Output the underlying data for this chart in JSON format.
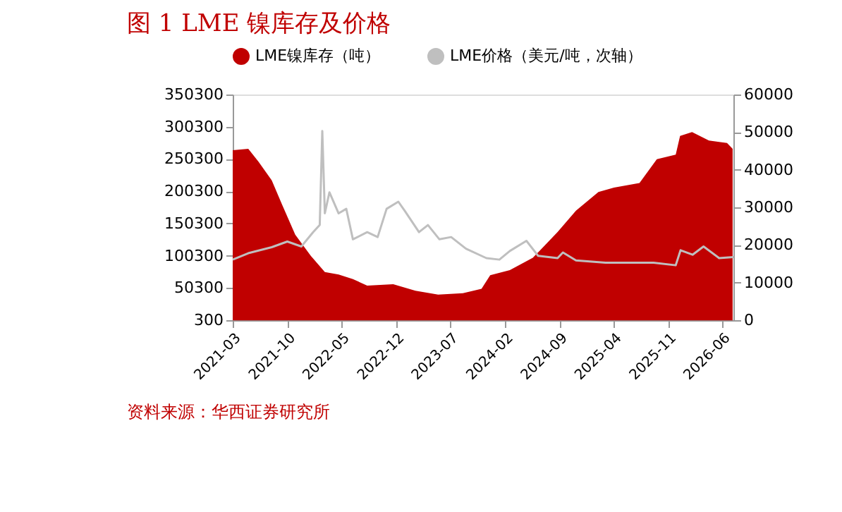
{
  "chart_data": {
    "type": "area",
    "title": "图 1 LME 镍库存及价格",
    "annotations": [
      "资料来源：华西证券研究所"
    ],
    "xlim": [
      "2021-03",
      "2026-07-15"
    ],
    "xticks": [
      "2021-03",
      "2021-10",
      "2022-05",
      "2022-12",
      "2023-07",
      "2024-02",
      "2024-09",
      "2025-04",
      "2025-11",
      "2026-06"
    ],
    "ylim": [
      300,
      350300
    ],
    "yticks": [
      300,
      50300,
      100300,
      150300,
      200300,
      250300,
      300300,
      350300
    ],
    "y2lim": [
      0,
      60000
    ],
    "y2ticks": [
      0,
      10000,
      20000,
      30000,
      40000,
      50000,
      60000
    ],
    "legend": "top",
    "grid": false,
    "series": [
      {
        "name": "LME镍库存（吨）",
        "color": "#c00000",
        "x": [
          "2021-03",
          "2021-05",
          "2021-06-10",
          "2021-08",
          "2021-09-10",
          "2021-11",
          "2022-01",
          "2022-02-25",
          "2022-04-20",
          "2022-06-15",
          "2022-08-10",
          "2022-11-20",
          "2023-02-15",
          "2023-05-15",
          "2023-08-20",
          "2023-11",
          "2023-12-05",
          "2024-02-20",
          "2024-05-20",
          "2024-08-25",
          "2024-11-05",
          "2025-02",
          "2025-04-03",
          "2025-07-12",
          "2025-09-18",
          "2025-12",
          "2025-12-18",
          "2026-02-03",
          "2026-04-10",
          "2026-06-20",
          "2026-07-12"
        ],
        "values": [
          264000,
          266000,
          246000,
          217000,
          180000,
          133000,
          100000,
          75000,
          71000,
          64000,
          54000,
          56000,
          46000,
          40000,
          42000,
          49000,
          70000,
          78000,
          97000,
          137000,
          170000,
          199000,
          206000,
          213000,
          250000,
          257000,
          286000,
          292000,
          279000,
          275000,
          266000
        ]
      },
      {
        "name": "LME价格（美元/吨，次轴）",
        "type": "line",
        "axis": "y2",
        "color": "#bfbfbf",
        "x": [
          "2021-03",
          "2021-05",
          "2021-08",
          "2021-10",
          "2021-11-25",
          "2022-01-10",
          "2022-02-05",
          "2022-02-15",
          "2022-02-25",
          "2022-03-15",
          "2022-04-20",
          "2022-05-20",
          "2022-06-15",
          "2022-08-10",
          "2022-09-20",
          "2022-10-25",
          "2022-12-10",
          "2023-01-05",
          "2023-03-01",
          "2023-04-05",
          "2023-05-20",
          "2023-07-05",
          "2023-09-01",
          "2023-11-20",
          "2024-01-10",
          "2024-02-20",
          "2024-04-25",
          "2024-06-10",
          "2024-08-25",
          "2024-09-15",
          "2024-11-05",
          "2025-03",
          "2025-09-05",
          "2025-12-01",
          "2025-12-20",
          "2026-02-05",
          "2026-03-20",
          "2026-05-20",
          "2026-07-15"
        ],
        "values": [
          16100,
          17800,
          19400,
          20900,
          19600,
          23400,
          25300,
          50300,
          28400,
          34000,
          28400,
          29600,
          21500,
          23400,
          22100,
          29600,
          31500,
          29000,
          23400,
          25300,
          21500,
          22100,
          19000,
          16500,
          16100,
          18400,
          21100,
          17100,
          16500,
          18000,
          15900,
          15300,
          15300,
          14600,
          18600,
          17400,
          19600,
          16500,
          16800
        ]
      }
    ]
  }
}
